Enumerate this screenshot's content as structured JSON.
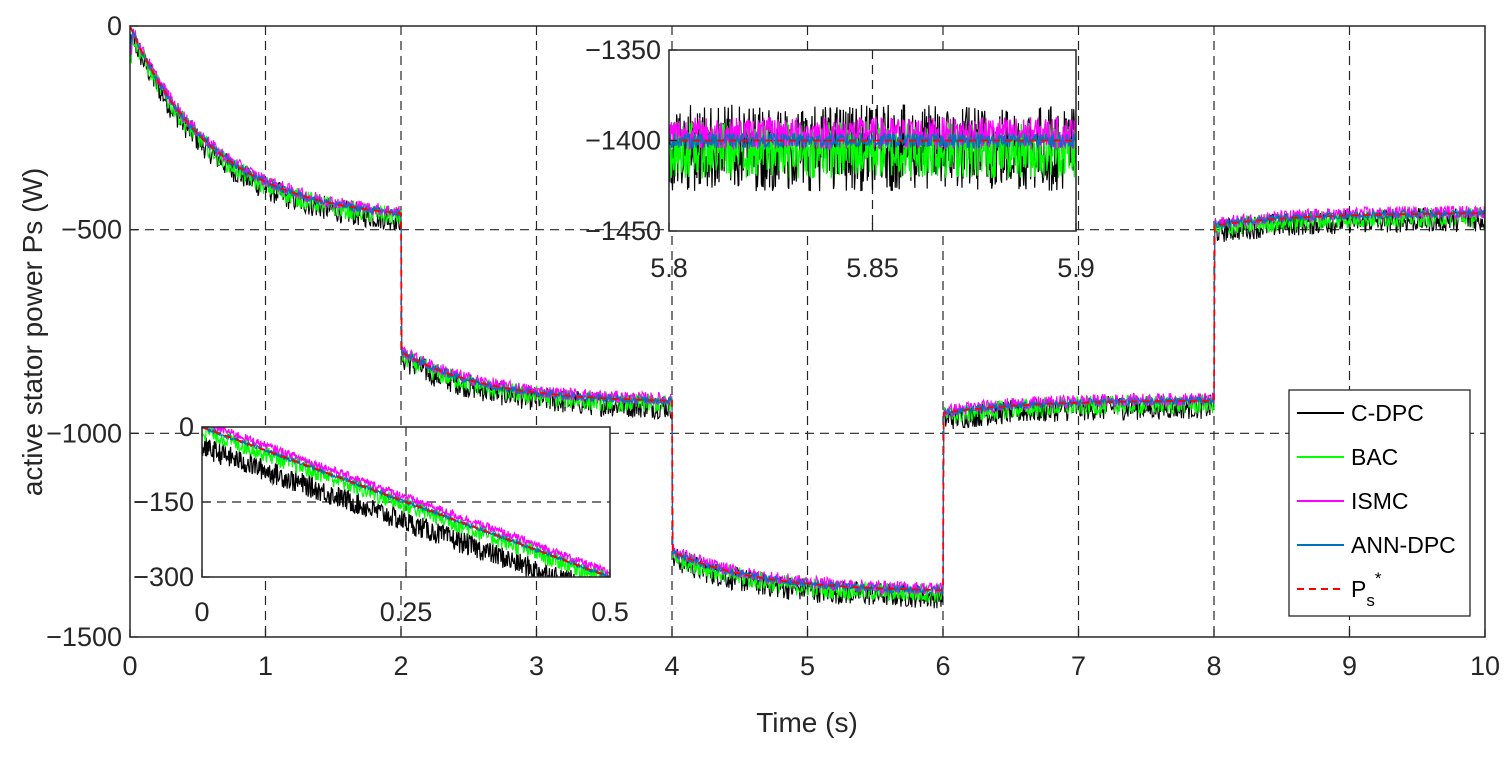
{
  "chart_data": {
    "type": "line",
    "title": "",
    "xlabel": "Time (s)",
    "ylabel": "active stator power Ps (W)",
    "xlim": [
      0,
      10
    ],
    "ylim": [
      -1500,
      0
    ],
    "xticks": [
      0,
      1,
      2,
      3,
      4,
      5,
      6,
      7,
      8,
      9,
      10
    ],
    "yticks": [
      0,
      -500,
      -1000,
      -1500
    ],
    "xtick_labels": [
      "0",
      "1",
      "2",
      "3",
      "4",
      "5",
      "6",
      "7",
      "8",
      "9",
      "10"
    ],
    "ytick_labels": [
      "0",
      "−500",
      "−1000",
      "−1500"
    ],
    "grid": true,
    "legend_position": "bottom-right",
    "reference": {
      "name": "Ps*",
      "segments": [
        {
          "t0": 0,
          "t1": 2,
          "p_start": 0,
          "p_end": -460
        },
        {
          "t0": 2,
          "t1": 4,
          "p_start": -800,
          "p_end": -920
        },
        {
          "t0": 4,
          "t1": 6,
          "p_start": -1290,
          "p_end": -1385
        },
        {
          "t0": 6,
          "t1": 8,
          "p_start": -950,
          "p_end": -920
        },
        {
          "t0": 8,
          "t1": 10,
          "p_start": -490,
          "p_end": -460
        }
      ]
    },
    "series": [
      {
        "name": "C-DPC",
        "color": "#000000",
        "noise_amplitude_w": 30,
        "offset_w": -15
      },
      {
        "name": "BAC",
        "color": "#00ff00",
        "noise_amplitude_w": 24,
        "offset_w": -8
      },
      {
        "name": "ISMC",
        "color": "#ff00ff",
        "noise_amplitude_w": 16,
        "offset_w": 4
      },
      {
        "name": "ANN-DPC",
        "color": "#0072bd",
        "noise_amplitude_w": 9,
        "offset_w": 0
      },
      {
        "name": "Ps*",
        "color": "#ff0000",
        "line_style": "dashed",
        "noise_amplitude_w": 0,
        "offset_w": 0
      }
    ],
    "legend": {
      "entries": [
        "C-DPC",
        "BAC",
        "ISMC",
        "ANN-DPC"
      ],
      "ref_main": "P",
      "ref_sub": "s",
      "ref_sup": "*"
    },
    "inset_top": {
      "xlim": [
        5.8,
        5.9
      ],
      "ylim": [
        -1450,
        -1350
      ],
      "xticks": [
        5.8,
        5.85,
        5.9
      ],
      "yticks": [
        -1350,
        -1400,
        -1450
      ],
      "xtick_labels": [
        "5.8",
        "5.85",
        "5.9"
      ],
      "ytick_labels": [
        "−1350",
        "−1400",
        "−1450"
      ],
      "center_w": -1400
    },
    "inset_bottom": {
      "xlim": [
        0,
        0.5
      ],
      "ylim": [
        -300,
        0
      ],
      "xticks": [
        0,
        0.25,
        0.5
      ],
      "yticks": [
        0,
        -150,
        -300
      ],
      "xtick_labels": [
        "0",
        "0.25",
        "0.5"
      ],
      "ytick_labels": [
        "0",
        "−150",
        "−300"
      ],
      "start_w": 0,
      "end_w": -300
    }
  }
}
